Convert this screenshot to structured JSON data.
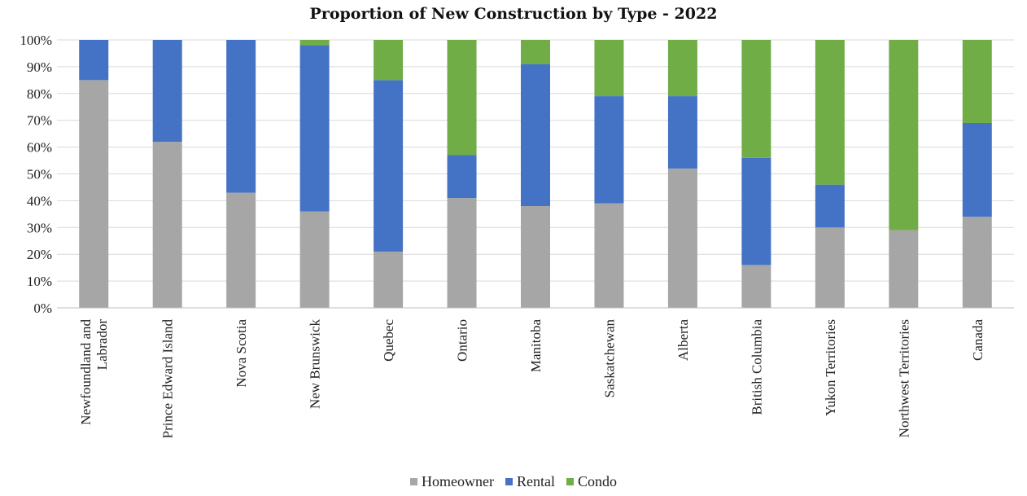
{
  "chart_data": {
    "type": "bar",
    "stacked": true,
    "title": "Proportion of New Construction by Type - 2022",
    "xlabel": "",
    "ylabel": "",
    "ylim": [
      0,
      100
    ],
    "y_ticks": [
      "0%",
      "10%",
      "20%",
      "30%",
      "40%",
      "50%",
      "60%",
      "70%",
      "80%",
      "90%",
      "100%"
    ],
    "grid": true,
    "legend_position": "bottom",
    "categories": [
      "Newfoundland and Labrador",
      "Prince Edward Island",
      "Nova Scotia",
      "New Brunswick",
      "Quebec",
      "Ontario",
      "Manitoba",
      "Saskatchewan",
      "Alberta",
      "British Columbia",
      "Yukon Territories",
      "Northwest Territories",
      "Canada"
    ],
    "category_label_lines": [
      [
        "Newfoundland and",
        "Labrador"
      ],
      [
        "Prince Edward Island"
      ],
      [
        "Nova Scotia"
      ],
      [
        "New Brunswick"
      ],
      [
        "Quebec"
      ],
      [
        "Ontario"
      ],
      [
        "Manitoba"
      ],
      [
        "Saskatchewan"
      ],
      [
        "Alberta"
      ],
      [
        "British Columbia"
      ],
      [
        "Yukon Territories"
      ],
      [
        "Northwest Territories"
      ],
      [
        "Canada"
      ]
    ],
    "series": [
      {
        "name": "Homeowner",
        "color": "#a6a6a6",
        "values": [
          85,
          62,
          43,
          36,
          21,
          41,
          38,
          39,
          52,
          16,
          30,
          29,
          34
        ]
      },
      {
        "name": "Rental",
        "color": "#4472c4",
        "values": [
          15,
          38,
          57,
          62,
          64,
          16,
          53,
          40,
          27,
          40,
          16,
          0,
          35
        ]
      },
      {
        "name": "Condo",
        "color": "#70ad47",
        "values": [
          0,
          0,
          0,
          2,
          15,
          43,
          9,
          21,
          21,
          44,
          54,
          71,
          31
        ]
      }
    ]
  }
}
